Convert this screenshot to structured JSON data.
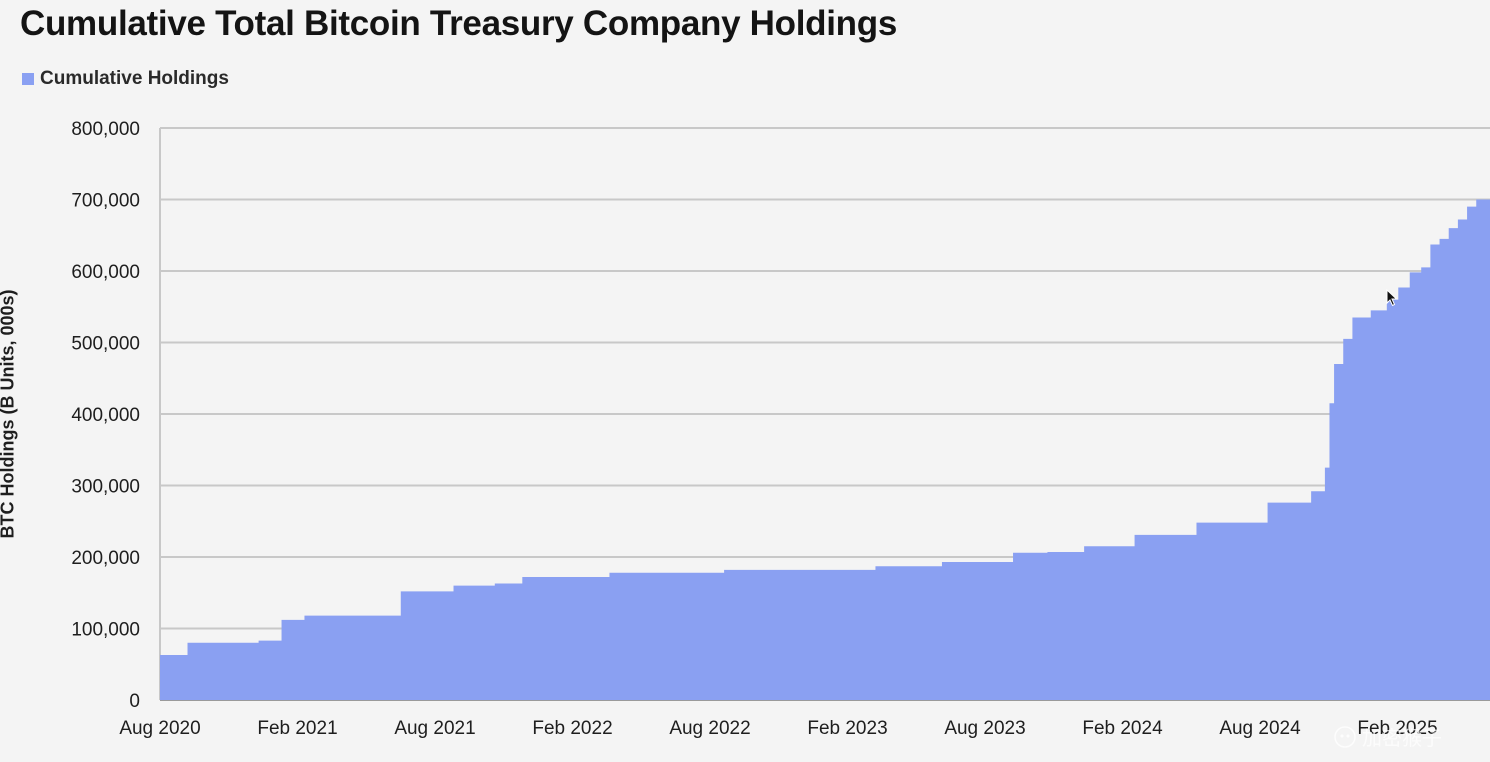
{
  "colors": {
    "fill": "#8aa0f2",
    "grid": "#c8c8c8",
    "axis": "#9a9a9a",
    "background": "#f4f4f4"
  },
  "chart_data": {
    "type": "area",
    "title": "Cumulative Total Bitcoin Treasury Company Holdings",
    "ylabel": "BTC Holdings (B Units, 000s)",
    "xlabel": "",
    "legend": {
      "position": "top-left",
      "entries": [
        "Cumulative Holdings"
      ]
    },
    "grid": "horizontal",
    "ylim": [
      0,
      800000
    ],
    "yticks": [
      "0",
      "100,000",
      "200,000",
      "300,000",
      "400,000",
      "500,000",
      "600,000",
      "700,000",
      "800,000"
    ],
    "xtick_labels": [
      "Aug 2020",
      "Feb 2021",
      "Aug 2021",
      "Feb 2022",
      "Aug 2022",
      "Feb 2023",
      "Aug 2023",
      "Feb 2024",
      "Aug 2024",
      "Feb 2025"
    ],
    "xlim_months": [
      0,
      58
    ],
    "series": [
      {
        "name": "Cumulative Holdings",
        "x_months_since_aug_2020": [
          0,
          1.2,
          4.3,
          5.3,
          6.3,
          10.5,
          12.8,
          14.6,
          15.8,
          19.6,
          24.6,
          31.2,
          34.1,
          37.2,
          38.7,
          40.3,
          42.5,
          45.2,
          48.3,
          50.2,
          50.8,
          51.0,
          51.2,
          51.6,
          52.0,
          52.8,
          53.5,
          54.0,
          54.5,
          55.0,
          55.4,
          55.8,
          56.2,
          56.6,
          57.0,
          57.4,
          58.0
        ],
        "y": [
          63000,
          80000,
          83000,
          112000,
          118000,
          152000,
          160000,
          163000,
          172000,
          178000,
          182000,
          187000,
          193000,
          206000,
          207000,
          215000,
          231000,
          248000,
          276000,
          292000,
          325000,
          415000,
          470000,
          505000,
          535000,
          545000,
          560000,
          577000,
          598000,
          605000,
          637000,
          645000,
          660000,
          672000,
          690000,
          700000,
          736000
        ]
      }
    ]
  },
  "watermark": {
    "text": "加密猴子"
  }
}
